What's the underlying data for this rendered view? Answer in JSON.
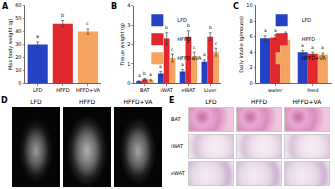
{
  "chart_data": [
    {
      "panel": "A",
      "type": "bar",
      "categories": [
        "LFD",
        "HFFD",
        "HFFD+VA"
      ],
      "values": [
        30,
        46,
        40
      ],
      "errors": [
        2,
        2.5,
        2
      ],
      "colors": [
        "#2343c4",
        "#e0282e",
        "#f4a460"
      ],
      "annotations": [
        "a",
        "b",
        "c"
      ],
      "y_label": "Max body weight (g)",
      "ylim": [
        0,
        60
      ],
      "yticks": [
        0,
        10,
        20,
        30,
        40,
        50,
        60
      ]
    },
    {
      "panel": "B",
      "type": "bar",
      "categories": [
        "BAT",
        "iWAT",
        "eWAT",
        "Liver"
      ],
      "series": [
        {
          "name": "LFD",
          "color": "#2343c4",
          "values": [
            0.1,
            0.5,
            0.6,
            1.1
          ],
          "errors": [
            0.02,
            0.1,
            0.1,
            0.1
          ],
          "annotations": [
            "a",
            "a",
            "a",
            "a"
          ]
        },
        {
          "name": "HFFD",
          "color": "#e0282e",
          "values": [
            0.2,
            2.3,
            2.4,
            2.4
          ],
          "errors": [
            0.05,
            0.3,
            0.3,
            0.2
          ],
          "annotations": [
            "b",
            "b",
            "b",
            "b"
          ]
        },
        {
          "name": "HFFD+VA",
          "color": "#f4a460",
          "values": [
            0.15,
            1.3,
            1.4,
            1.6
          ],
          "errors": [
            0.03,
            0.2,
            0.2,
            0.2
          ],
          "annotations": [
            "a",
            "c",
            "c",
            "c"
          ]
        }
      ],
      "y_label": "Tissue weight (g)",
      "ylim": [
        0,
        4
      ],
      "yticks": [
        0,
        1,
        2,
        3,
        4
      ],
      "legend": "top left"
    },
    {
      "panel": "C",
      "type": "bar",
      "categories": [
        "water",
        "feed"
      ],
      "series": [
        {
          "name": "LFD",
          "color": "#2343c4",
          "values": [
            5.8,
            4.0
          ],
          "errors": [
            0.3,
            0.2
          ],
          "annotations": [
            "a",
            "a"
          ]
        },
        {
          "name": "HFFD",
          "color": "#e0282e",
          "values": [
            5.9,
            3.8
          ],
          "errors": [
            0.3,
            0.2
          ],
          "annotations": [
            "a",
            "a"
          ]
        },
        {
          "name": "HFFD+VA",
          "color": "#f4a460",
          "values": [
            5.6,
            3.7
          ],
          "errors": [
            0.3,
            0.2
          ],
          "annotations": [
            "a",
            "a"
          ]
        }
      ],
      "y_label": "Daily intake (g/mouse)",
      "ylim": [
        0,
        10
      ],
      "yticks": [
        0,
        2,
        4,
        6,
        8,
        10
      ],
      "legend": "top right"
    }
  ],
  "image_panels": [
    {
      "panel": "D",
      "columns": [
        "LFD",
        "HFFD",
        "HFFD+VA"
      ]
    },
    {
      "panel": "E",
      "columns": [
        "LFD",
        "HFFD",
        "HFFD+VA"
      ],
      "rows": [
        "BAT",
        "iWAT",
        "eWAT"
      ]
    }
  ]
}
